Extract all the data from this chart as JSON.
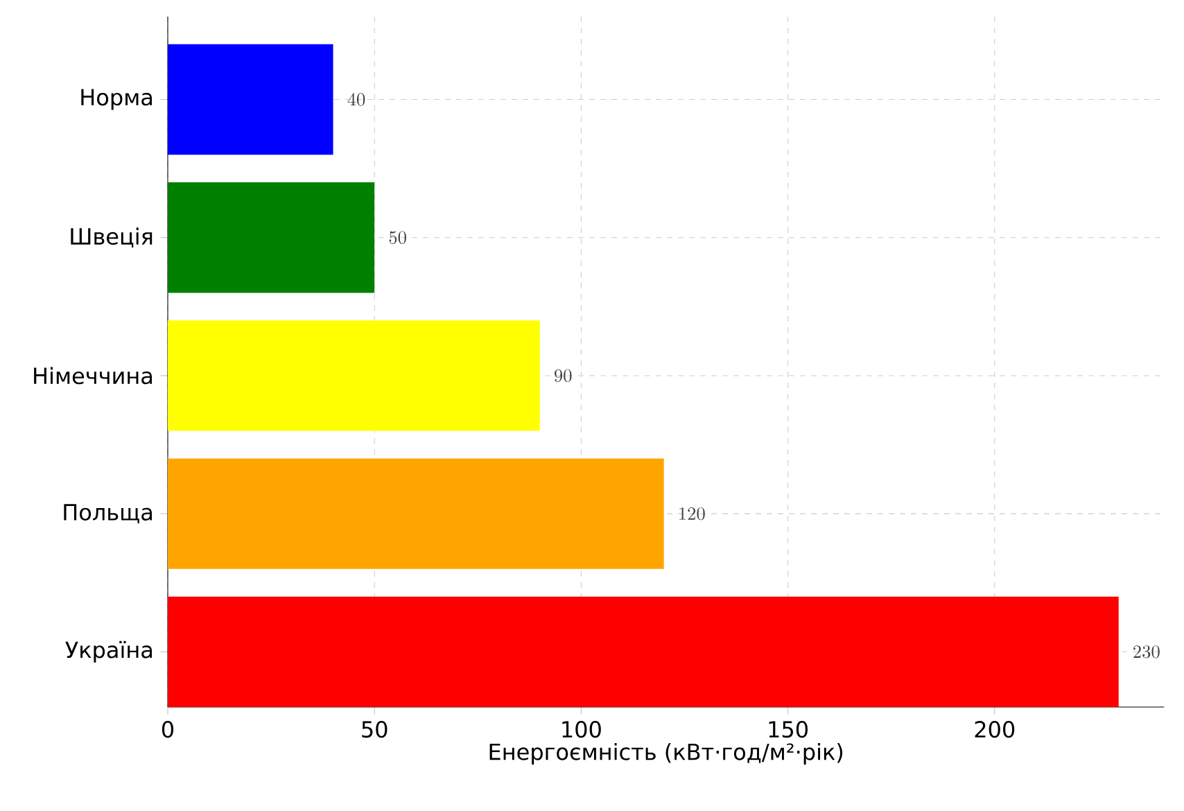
{
  "chart_data": {
    "type": "bar",
    "orientation": "horizontal",
    "xlabel": "Енергоємність (кВт·год/м²·рік)",
    "categories": [
      "Норма",
      "Швеція",
      "Німеччина",
      "Польща",
      "Україна"
    ],
    "values": [
      40,
      50,
      90,
      120,
      230
    ],
    "colors": [
      "#0000ff",
      "#008000",
      "#ffff00",
      "#ffa500",
      "#ff0000"
    ],
    "xlim": [
      0,
      241
    ],
    "xticks": [
      0,
      50,
      100,
      150,
      200
    ],
    "grid": true,
    "data_labels": true
  }
}
